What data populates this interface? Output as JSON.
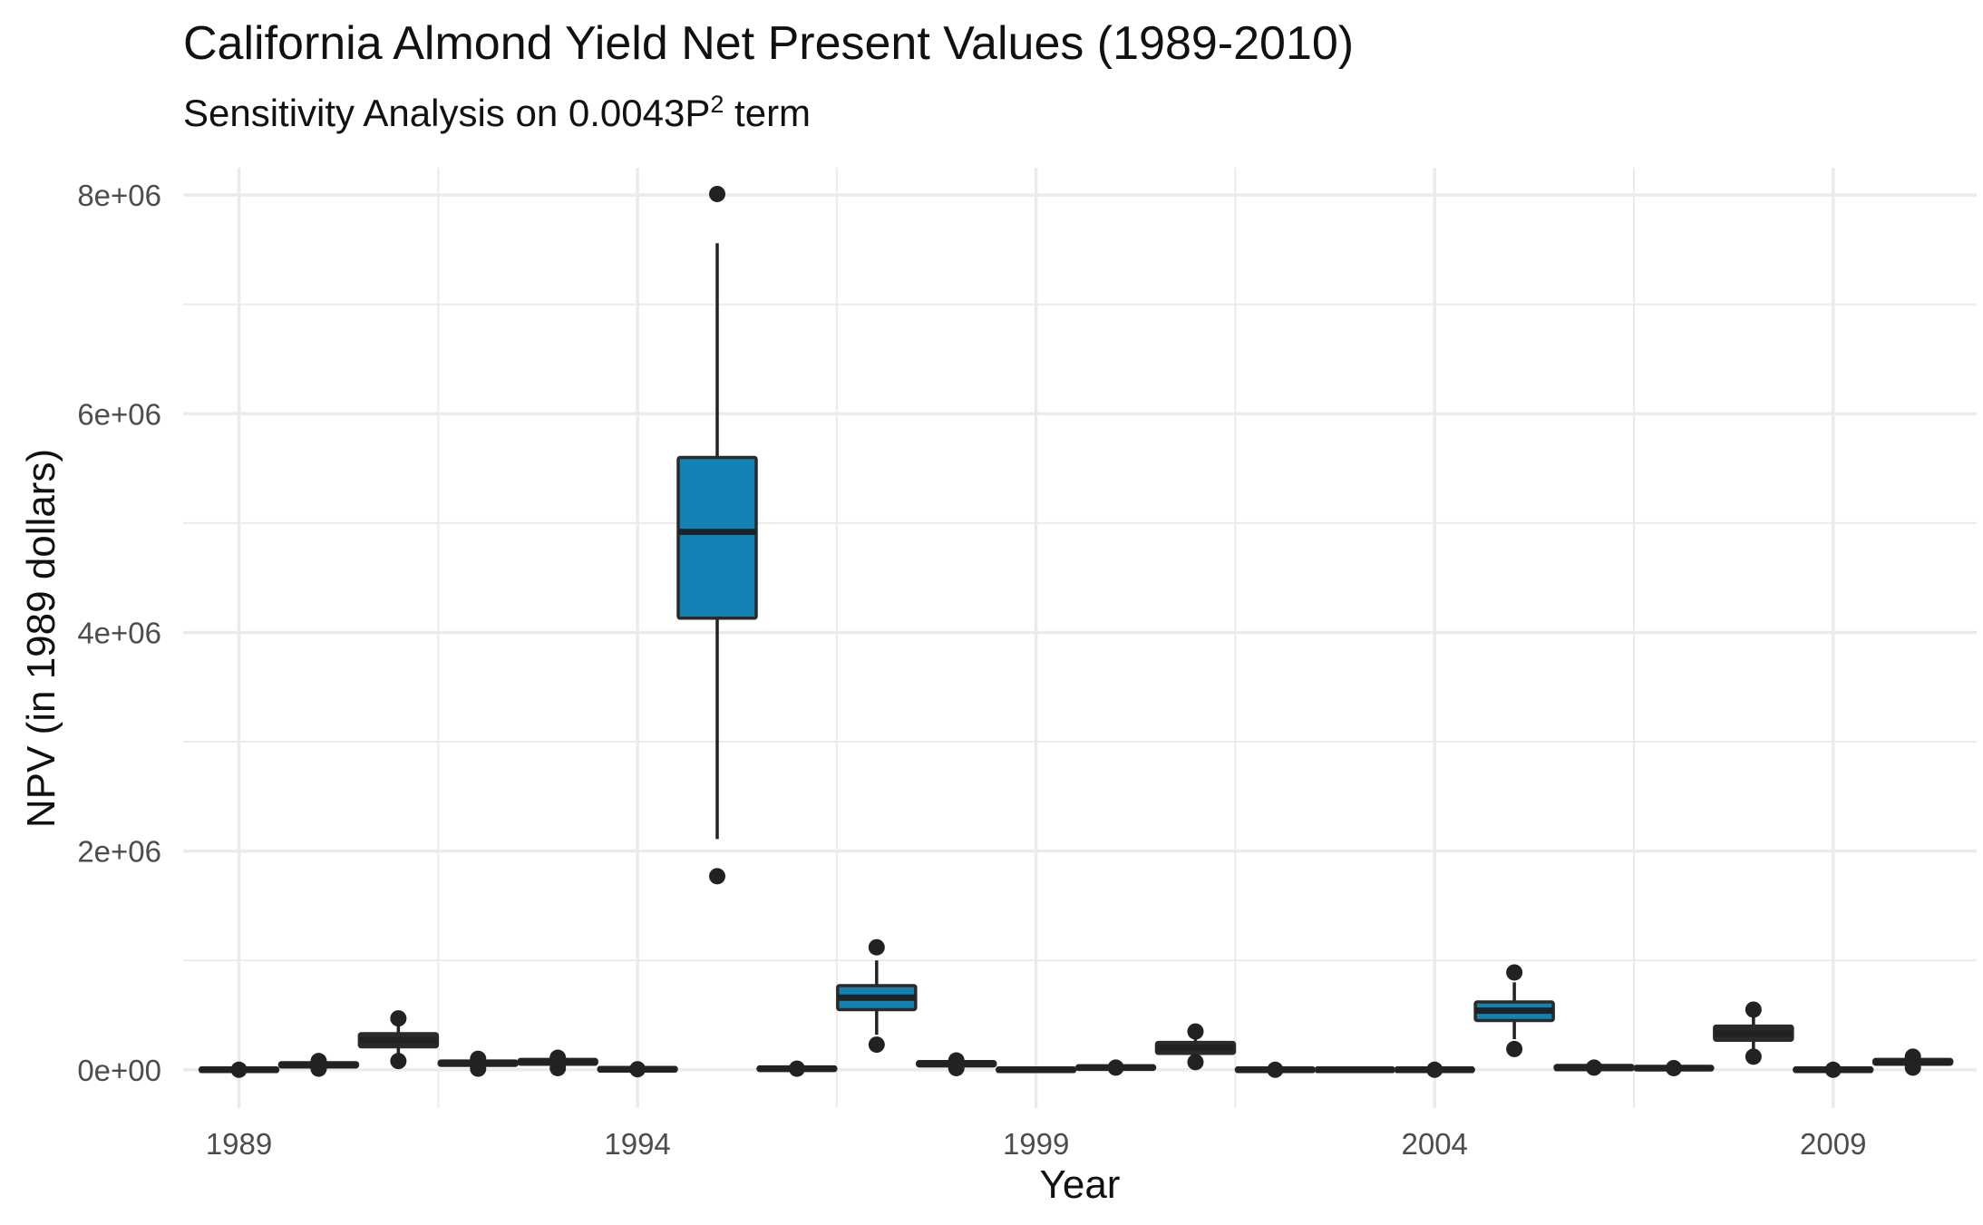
{
  "chart_data": {
    "type": "box",
    "title": "California Almond Yield Net Present Values (1989-2010)",
    "subtitle": {
      "prefix": "Sensitivity Analysis on 0.0043P",
      "superscript": "2",
      "suffix": " term"
    },
    "xlabel": "Year",
    "ylabel": "NPV (in 1989 dollars)",
    "x_ticks": [
      1989,
      1994,
      1999,
      2004,
      2009
    ],
    "y_ticks": [
      {
        "value": 0,
        "label": "0e+00"
      },
      {
        "value": 2000000,
        "label": "2e+06"
      },
      {
        "value": 4000000,
        "label": "4e+06"
      },
      {
        "value": 6000000,
        "label": "6e+06"
      },
      {
        "value": 8000000,
        "label": "8e+06"
      }
    ],
    "ylim": [
      -350000,
      8250000
    ],
    "xlim": [
      1988.3,
      2010.8
    ],
    "grid": true,
    "colors": {
      "box_normal": "#2a2a2a",
      "box_highlight": "#1281b4",
      "whisker": "#222222",
      "grid": "#ebebeb"
    },
    "boxes": [
      {
        "year": 1989,
        "q1": -15000,
        "median": 0,
        "q3": 15000,
        "whisker_low": -15000,
        "whisker_high": 15000,
        "outliers": [
          0
        ],
        "highlight": false
      },
      {
        "year": 1990,
        "q1": 25000,
        "median": 45000,
        "q3": 65000,
        "whisker_low": 25000,
        "whisker_high": 65000,
        "outliers": [
          80000,
          10000
        ],
        "highlight": false
      },
      {
        "year": 1991,
        "q1": 210000,
        "median": 270000,
        "q3": 330000,
        "whisker_low": 150000,
        "whisker_high": 400000,
        "outliers": [
          470000,
          80000
        ],
        "highlight": false
      },
      {
        "year": 1992,
        "q1": 40000,
        "median": 60000,
        "q3": 80000,
        "whisker_low": 40000,
        "whisker_high": 80000,
        "outliers": [
          100000,
          10000
        ],
        "highlight": false
      },
      {
        "year": 1993,
        "q1": 50000,
        "median": 75000,
        "q3": 95000,
        "whisker_low": 50000,
        "whisker_high": 95000,
        "outliers": [
          110000,
          15000
        ],
        "highlight": false
      },
      {
        "year": 1994,
        "q1": -10000,
        "median": 5000,
        "q3": 20000,
        "whisker_low": -10000,
        "whisker_high": 20000,
        "outliers": [
          5000
        ],
        "highlight": false
      },
      {
        "year": 1995,
        "q1": 4130000,
        "median": 4920000,
        "q3": 5600000,
        "whisker_low": 2110000,
        "whisker_high": 7560000,
        "outliers": [
          8010000,
          1770000
        ],
        "highlight": true
      },
      {
        "year": 1996,
        "q1": -5000,
        "median": 10000,
        "q3": 25000,
        "whisker_low": -5000,
        "whisker_high": 25000,
        "outliers": [
          10000
        ],
        "highlight": false
      },
      {
        "year": 1997,
        "q1": 550000,
        "median": 660000,
        "q3": 770000,
        "whisker_low": 320000,
        "whisker_high": 1000000,
        "outliers": [
          1120000,
          230000
        ],
        "highlight": true
      },
      {
        "year": 1998,
        "q1": 35000,
        "median": 55000,
        "q3": 75000,
        "whisker_low": 35000,
        "whisker_high": 75000,
        "outliers": [
          85000,
          15000
        ],
        "highlight": false
      },
      {
        "year": 1999,
        "q1": -10000,
        "median": 0,
        "q3": 10000,
        "whisker_low": -10000,
        "whisker_high": 10000,
        "outliers": [],
        "highlight": false
      },
      {
        "year": 2000,
        "q1": 5000,
        "median": 20000,
        "q3": 35000,
        "whisker_low": 5000,
        "whisker_high": 35000,
        "outliers": [
          20000
        ],
        "highlight": false
      },
      {
        "year": 2001,
        "q1": 150000,
        "median": 200000,
        "q3": 250000,
        "whisker_low": 120000,
        "whisker_high": 280000,
        "outliers": [
          350000,
          70000
        ],
        "highlight": false
      },
      {
        "year": 2002,
        "q1": -10000,
        "median": 0,
        "q3": 10000,
        "whisker_low": -10000,
        "whisker_high": 10000,
        "outliers": [
          0
        ],
        "highlight": false
      },
      {
        "year": 2003,
        "q1": -10000,
        "median": 0,
        "q3": 10000,
        "whisker_low": -10000,
        "whisker_high": 10000,
        "outliers": [],
        "highlight": false
      },
      {
        "year": 2004,
        "q1": -10000,
        "median": 0,
        "q3": 10000,
        "whisker_low": -10000,
        "whisker_high": 10000,
        "outliers": [
          0
        ],
        "highlight": false
      },
      {
        "year": 2005,
        "q1": 450000,
        "median": 540000,
        "q3": 620000,
        "whisker_low": 280000,
        "whisker_high": 800000,
        "outliers": [
          890000,
          190000
        ],
        "highlight": true
      },
      {
        "year": 2006,
        "q1": 0,
        "median": 20000,
        "q3": 40000,
        "whisker_low": 0,
        "whisker_high": 40000,
        "outliers": [
          20000
        ],
        "highlight": false
      },
      {
        "year": 2007,
        "q1": 0,
        "median": 15000,
        "q3": 30000,
        "whisker_low": 0,
        "whisker_high": 30000,
        "outliers": [
          15000
        ],
        "highlight": false
      },
      {
        "year": 2008,
        "q1": 270000,
        "median": 330000,
        "q3": 400000,
        "whisker_low": 190000,
        "whisker_high": 480000,
        "outliers": [
          550000,
          120000
        ],
        "highlight": false
      },
      {
        "year": 2009,
        "q1": -10000,
        "median": 0,
        "q3": 10000,
        "whisker_low": -10000,
        "whisker_high": 10000,
        "outliers": [
          0
        ],
        "highlight": false
      },
      {
        "year": 2010,
        "q1": 50000,
        "median": 70000,
        "q3": 95000,
        "whisker_low": 50000,
        "whisker_high": 95000,
        "outliers": [
          120000,
          20000
        ],
        "highlight": false
      }
    ]
  }
}
